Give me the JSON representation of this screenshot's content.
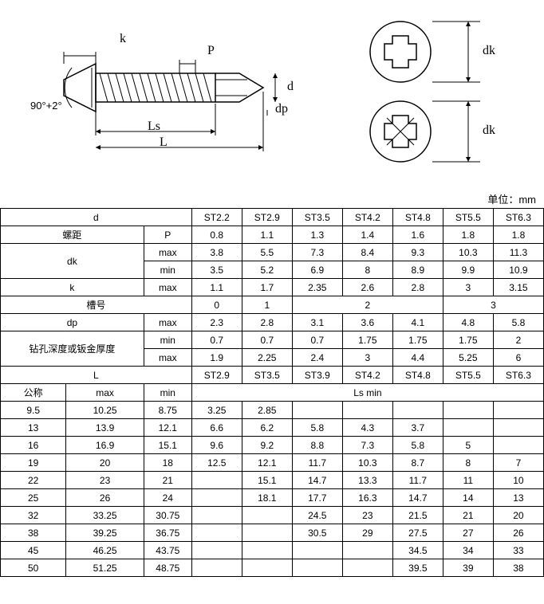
{
  "unit": "单位：mm",
  "angle": "90°+2°",
  "dims": {
    "k": "k",
    "P": "P",
    "d": "d",
    "dp": "dp",
    "Ls": "Ls",
    "L": "L",
    "dk": "dk"
  },
  "table1": {
    "d_label": "d",
    "P_label": "螺距",
    "P_sym": "P",
    "dk_label": "dk",
    "k_label": "k",
    "slot_label": "槽号",
    "dp_label": "dp",
    "drill_label": "钻孔深度或钣金厚度",
    "max": "max",
    "min": "min",
    "sizes": [
      "ST2.2",
      "ST2.9",
      "ST3.5",
      "ST4.2",
      "ST4.8",
      "ST5.5",
      "ST6.3"
    ],
    "P_vals": [
      "0.8",
      "1.1",
      "1.3",
      "1.4",
      "1.6",
      "1.8",
      "1.8"
    ],
    "dk_max": [
      "3.8",
      "5.5",
      "7.3",
      "8.4",
      "9.3",
      "10.3",
      "11.3"
    ],
    "dk_min": [
      "3.5",
      "5.2",
      "6.9",
      "8",
      "8.9",
      "9.9",
      "10.9"
    ],
    "k_max": [
      "1.1",
      "1.7",
      "2.35",
      "2.6",
      "2.8",
      "3",
      "3.15"
    ],
    "slot": [
      "0",
      "1",
      "2",
      "3"
    ],
    "dp_max": [
      "2.3",
      "2.8",
      "3.1",
      "3.6",
      "4.1",
      "4.8",
      "5.8"
    ],
    "drill_min": [
      "0.7",
      "0.7",
      "0.7",
      "1.75",
      "1.75",
      "1.75",
      "2"
    ],
    "drill_max": [
      "1.9",
      "2.25",
      "2.4",
      "3",
      "4.4",
      "5.25",
      "6"
    ]
  },
  "table2": {
    "L_label": "L",
    "nominal": "公称",
    "max": "max",
    "min": "min",
    "Ls_label": "Ls min",
    "sizes": [
      "ST2.9",
      "ST3.5",
      "ST3.9",
      "ST4.2",
      "ST4.8",
      "ST5.5",
      "ST6.3"
    ],
    "rows": [
      {
        "L": "9.5",
        "max": "10.25",
        "min": "8.75",
        "ls": [
          "3.25",
          "2.85",
          "",
          "",
          "",
          "",
          ""
        ]
      },
      {
        "L": "13",
        "max": "13.9",
        "min": "12.1",
        "ls": [
          "6.6",
          "6.2",
          "5.8",
          "4.3",
          "3.7",
          "",
          ""
        ]
      },
      {
        "L": "16",
        "max": "16.9",
        "min": "15.1",
        "ls": [
          "9.6",
          "9.2",
          "8.8",
          "7.3",
          "5.8",
          "5",
          ""
        ]
      },
      {
        "L": "19",
        "max": "20",
        "min": "18",
        "ls": [
          "12.5",
          "12.1",
          "11.7",
          "10.3",
          "8.7",
          "8",
          "7"
        ]
      },
      {
        "L": "22",
        "max": "23",
        "min": "21",
        "ls": [
          "",
          "15.1",
          "14.7",
          "13.3",
          "11.7",
          "11",
          "10"
        ]
      },
      {
        "L": "25",
        "max": "26",
        "min": "24",
        "ls": [
          "",
          "18.1",
          "17.7",
          "16.3",
          "14.7",
          "14",
          "13"
        ]
      },
      {
        "L": "32",
        "max": "33.25",
        "min": "30.75",
        "ls": [
          "",
          "",
          "24.5",
          "23",
          "21.5",
          "21",
          "20"
        ]
      },
      {
        "L": "38",
        "max": "39.25",
        "min": "36.75",
        "ls": [
          "",
          "",
          "30.5",
          "29",
          "27.5",
          "27",
          "26"
        ]
      },
      {
        "L": "45",
        "max": "46.25",
        "min": "43.75",
        "ls": [
          "",
          "",
          "",
          "",
          "34.5",
          "34",
          "33"
        ]
      },
      {
        "L": "50",
        "max": "51.25",
        "min": "48.75",
        "ls": [
          "",
          "",
          "",
          "",
          "39.5",
          "39",
          "38"
        ]
      }
    ]
  }
}
